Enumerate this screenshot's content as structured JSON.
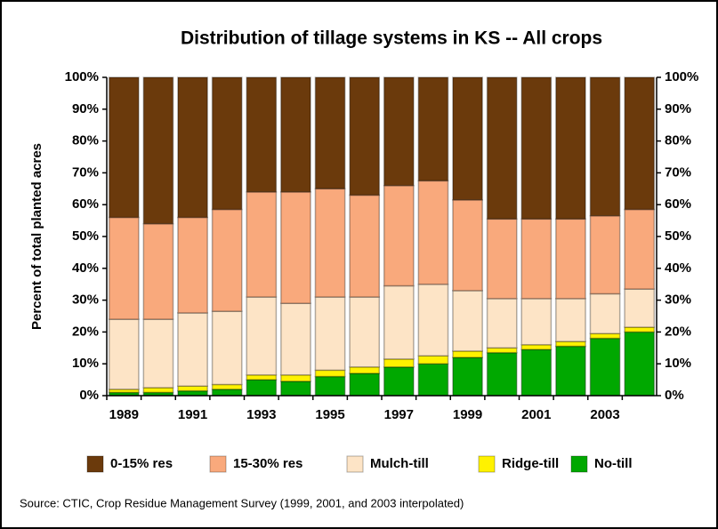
{
  "chart_data": {
    "type": "stacked_bar",
    "title": "Distribution of tillage systems in KS -- All crops",
    "y_label": "Percent of total planted acres",
    "source": "Source:  CTIC, Crop Residue Management Survey (1999, 2001, and 2003 interpolated)",
    "categories": [
      "1989",
      null,
      "1991",
      null,
      "1993",
      null,
      "1995",
      null,
      "1997",
      null,
      "1999",
      null,
      "2001",
      null,
      "2003",
      null
    ],
    "series": [
      {
        "name": "No-till",
        "color": "#00a800",
        "values": [
          1,
          1,
          1.5,
          2,
          5,
          4.5,
          6,
          7,
          9,
          10,
          12,
          13.5,
          14.5,
          15.5,
          18,
          20
        ]
      },
      {
        "name": "Ridge-till",
        "color": "#fff200",
        "values": [
          1,
          1.5,
          1.5,
          1.5,
          1.5,
          2,
          2,
          2,
          2.5,
          2.5,
          2,
          1.5,
          1.5,
          1.5,
          1.5,
          1.5
        ]
      },
      {
        "name": "Mulch-till",
        "color": "#fde4c6",
        "values": [
          22,
          21.5,
          23,
          23,
          24.5,
          22.5,
          23,
          22,
          23,
          22.5,
          19,
          15.5,
          14.5,
          13.5,
          12.5,
          12
        ]
      },
      {
        "name": "15-30% res",
        "color": "#f9a97c",
        "values": [
          32,
          30,
          30,
          32,
          33,
          35,
          34,
          32,
          31.5,
          32.5,
          28.5,
          25,
          25,
          25,
          24.5,
          25
        ]
      },
      {
        "name": "0-15% res",
        "color": "#6b3a0c",
        "values": [
          44,
          46,
          44,
          41.5,
          36,
          36,
          35,
          37,
          34,
          32.5,
          38.5,
          44.5,
          44.5,
          44.5,
          43.5,
          41.5
        ]
      }
    ],
    "ylim": [
      0,
      100
    ],
    "yticks": [
      {
        "value": 0,
        "label": "0%"
      },
      {
        "value": 10,
        "label": "10%"
      },
      {
        "value": 20,
        "label": "20%"
      },
      {
        "value": 30,
        "label": "30%"
      },
      {
        "value": 40,
        "label": "40%"
      },
      {
        "value": 50,
        "label": "50%"
      },
      {
        "value": 60,
        "label": "60%"
      },
      {
        "value": 70,
        "label": "70%"
      },
      {
        "value": 80,
        "label": "80%"
      },
      {
        "value": 90,
        "label": "90%"
      },
      {
        "value": 100,
        "label": "100%"
      }
    ],
    "y2lim": [
      0,
      100
    ],
    "y2ticks": [
      {
        "value": 0,
        "label": "0%"
      },
      {
        "value": 10,
        "label": "10%"
      },
      {
        "value": 20,
        "label": "20%"
      },
      {
        "value": 30,
        "label": "30%"
      },
      {
        "value": 40,
        "label": "40%"
      },
      {
        "value": 50,
        "label": "50%"
      },
      {
        "value": 60,
        "label": "60%"
      },
      {
        "value": 70,
        "label": "70%"
      },
      {
        "value": 80,
        "label": "80%"
      },
      {
        "value": 90,
        "label": "90%"
      },
      {
        "value": 100,
        "label": "100%"
      }
    ],
    "grid": false
  }
}
